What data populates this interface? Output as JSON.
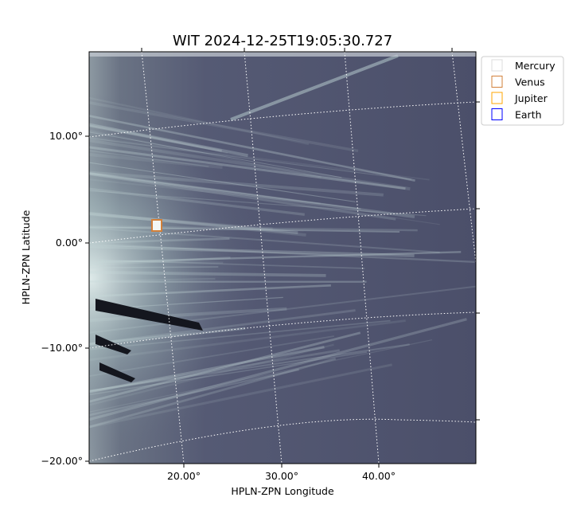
{
  "chart_data": {
    "type": "heatmap",
    "title": "WIT 2024-12-25T19:05:30.727",
    "xlabel": "HPLN-ZPN Longitude",
    "ylabel": "HPLN-ZPN Latitude",
    "x_ticks": [
      "20.00°",
      "30.00°",
      "40.00°"
    ],
    "y_ticks": [
      "10.00°",
      "0.00°",
      "−10.00°",
      "−20.00°"
    ],
    "grid": true,
    "colormap": "bone",
    "legend": {
      "placement": "outside-top-right",
      "entries": [
        {
          "name": "Mercury",
          "color": "#dddddd"
        },
        {
          "name": "Venus",
          "color": "#d2803a"
        },
        {
          "name": "Jupiter",
          "color": "#ffa500"
        },
        {
          "name": "Earth",
          "color": "#0000ff"
        }
      ]
    },
    "markers": [
      {
        "name": "Venus",
        "lon": 17.0,
        "lat": 1.6,
        "color": "#d2803a"
      }
    ]
  }
}
